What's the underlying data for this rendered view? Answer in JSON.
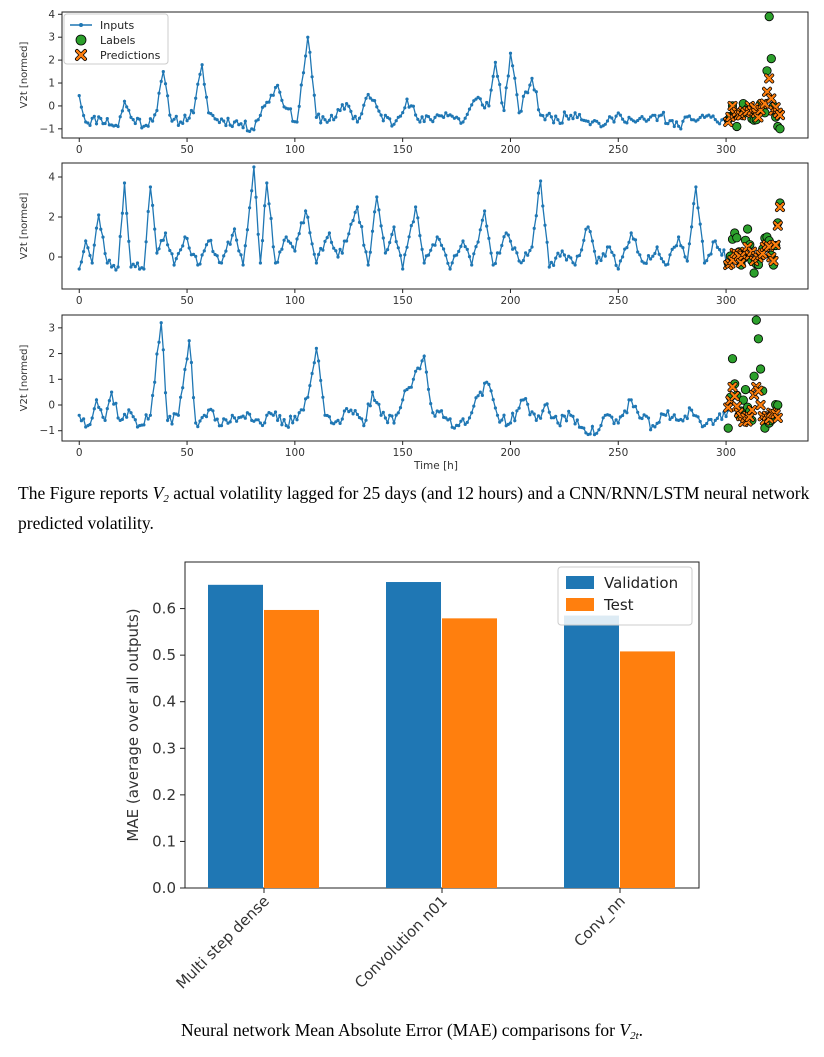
{
  "chart_data": [
    {
      "type": "line",
      "title": "",
      "xlabel": "Time [h]",
      "ylabel": "V2t [normed]",
      "xlim": [
        -8,
        338
      ],
      "x_ticks": [
        0,
        50,
        100,
        150,
        200,
        250,
        300
      ],
      "legend": {
        "placement": "top-left",
        "entries": [
          "Inputs",
          "Labels",
          "Predictions"
        ]
      },
      "panels": [
        {
          "ylabel": "V2t [normed]",
          "ylim": [
            -1.4,
            4.1
          ],
          "y_ticks": [
            -1,
            0,
            1,
            2,
            3,
            4
          ],
          "inputs_knots": [
            [
              0,
              0.45
            ],
            [
              3,
              -0.7
            ],
            [
              10,
              -0.55
            ],
            [
              18,
              -0.9
            ],
            [
              21,
              0.2
            ],
            [
              24,
              -0.5
            ],
            [
              31,
              -0.85
            ],
            [
              36,
              -0.2
            ],
            [
              39,
              1.5
            ],
            [
              42,
              -0.4
            ],
            [
              47,
              -0.7
            ],
            [
              53,
              -0.3
            ],
            [
              57,
              1.8
            ],
            [
              60,
              -0.3
            ],
            [
              64,
              -0.6
            ],
            [
              72,
              -0.7
            ],
            [
              80,
              -1.0
            ],
            [
              86,
              0.0
            ],
            [
              92,
              0.9
            ],
            [
              96,
              -0.1
            ],
            [
              101,
              -0.7
            ],
            [
              106,
              3.0
            ],
            [
              110,
              -0.5
            ],
            [
              118,
              -0.6
            ],
            [
              124,
              0.1
            ],
            [
              129,
              -0.7
            ],
            [
              134,
              0.5
            ],
            [
              140,
              -0.4
            ],
            [
              146,
              -0.8
            ],
            [
              152,
              0.3
            ],
            [
              158,
              -0.7
            ],
            [
              165,
              -0.5
            ],
            [
              170,
              -0.3
            ],
            [
              178,
              -0.7
            ],
            [
              184,
              0.3
            ],
            [
              190,
              0.0
            ],
            [
              193,
              1.9
            ],
            [
              197,
              -0.2
            ],
            [
              200,
              2.3
            ],
            [
              204,
              -0.3
            ],
            [
              210,
              1.2
            ],
            [
              214,
              -0.4
            ],
            [
              222,
              -0.6
            ],
            [
              230,
              -0.3
            ],
            [
              238,
              -0.7
            ],
            [
              244,
              -0.8
            ],
            [
              251,
              -0.4
            ],
            [
              258,
              -0.7
            ],
            [
              264,
              -0.6
            ],
            [
              270,
              -0.4
            ],
            [
              276,
              -0.9
            ],
            [
              284,
              -0.6
            ],
            [
              292,
              -0.4
            ],
            [
              296,
              -0.7
            ],
            [
              301,
              -0.6
            ]
          ],
          "label_knots": [
            [
              301,
              -0.6
            ],
            [
              303,
              0.0
            ],
            [
              305,
              -0.9
            ],
            [
              308,
              0.1
            ],
            [
              311,
              -0.3
            ],
            [
              314,
              -0.6
            ],
            [
              316,
              0.1
            ],
            [
              318,
              -0.3
            ],
            [
              320,
              3.9
            ],
            [
              322,
              0.0
            ],
            [
              325,
              -1.0
            ]
          ],
          "prediction_knots": [
            [
              301,
              -0.7
            ],
            [
              303,
              0.0
            ],
            [
              306,
              -0.4
            ],
            [
              309,
              -0.3
            ],
            [
              312,
              -0.2
            ],
            [
              315,
              -0.5
            ],
            [
              318,
              0.1
            ],
            [
              320,
              1.2
            ],
            [
              322,
              -0.2
            ],
            [
              325,
              -0.4
            ]
          ],
          "seed": 11
        },
        {
          "ylabel": "V2t [normed]",
          "ylim": [
            -1.6,
            4.7
          ],
          "y_ticks": [
            0,
            2,
            4
          ],
          "inputs_knots": [
            [
              0,
              -0.6
            ],
            [
              3,
              0.8
            ],
            [
              6,
              -0.3
            ],
            [
              9,
              2.1
            ],
            [
              13,
              -0.3
            ],
            [
              18,
              -0.5
            ],
            [
              21,
              3.7
            ],
            [
              24,
              -0.5
            ],
            [
              27,
              -0.3
            ],
            [
              30,
              -0.6
            ],
            [
              33,
              3.5
            ],
            [
              36,
              0.2
            ],
            [
              40,
              1.2
            ],
            [
              44,
              -0.4
            ],
            [
              49,
              1.0
            ],
            [
              55,
              -0.4
            ],
            [
              60,
              0.8
            ],
            [
              66,
              -0.3
            ],
            [
              72,
              1.4
            ],
            [
              76,
              -0.4
            ],
            [
              81,
              4.5
            ],
            [
              84,
              -0.3
            ],
            [
              87,
              3.7
            ],
            [
              91,
              -0.3
            ],
            [
              96,
              1.0
            ],
            [
              100,
              0.3
            ],
            [
              105,
              2.3
            ],
            [
              110,
              -0.3
            ],
            [
              116,
              1.2
            ],
            [
              120,
              0.0
            ],
            [
              124,
              0.8
            ],
            [
              129,
              2.5
            ],
            [
              134,
              -0.4
            ],
            [
              138,
              3.0
            ],
            [
              142,
              0.2
            ],
            [
              146,
              1.5
            ],
            [
              150,
              -0.6
            ],
            [
              156,
              2.5
            ],
            [
              160,
              -0.3
            ],
            [
              166,
              1.0
            ],
            [
              172,
              -0.6
            ],
            [
              178,
              0.8
            ],
            [
              182,
              -0.4
            ],
            [
              188,
              2.3
            ],
            [
              192,
              -0.4
            ],
            [
              198,
              1.2
            ],
            [
              204,
              -0.2
            ],
            [
              210,
              0.5
            ],
            [
              214,
              3.8
            ],
            [
              218,
              -0.5
            ],
            [
              224,
              0.3
            ],
            [
              230,
              -0.4
            ],
            [
              236,
              1.5
            ],
            [
              240,
              -0.3
            ],
            [
              246,
              0.5
            ],
            [
              250,
              -0.6
            ],
            [
              256,
              1.2
            ],
            [
              262,
              -0.3
            ],
            [
              268,
              0.5
            ],
            [
              272,
              -0.4
            ],
            [
              278,
              1.0
            ],
            [
              282,
              -0.2
            ],
            [
              286,
              3.5
            ],
            [
              290,
              -0.3
            ],
            [
              295,
              0.8
            ],
            [
              301,
              -0.2
            ]
          ],
          "label_knots": [
            [
              301,
              -0.3
            ],
            [
              304,
              1.2
            ],
            [
              307,
              -0.4
            ],
            [
              310,
              1.4
            ],
            [
              313,
              -0.8
            ],
            [
              316,
              0.1
            ],
            [
              319,
              1.0
            ],
            [
              322,
              -0.4
            ],
            [
              325,
              2.7
            ]
          ],
          "prediction_knots": [
            [
              301,
              -0.4
            ],
            [
              304,
              0.2
            ],
            [
              307,
              -0.3
            ],
            [
              310,
              0.5
            ],
            [
              313,
              -0.2
            ],
            [
              316,
              0.1
            ],
            [
              319,
              0.6
            ],
            [
              322,
              -0.2
            ],
            [
              325,
              2.5
            ]
          ],
          "seed": 23
        },
        {
          "ylabel": "V2t [normed]",
          "ylim": [
            -1.4,
            3.5
          ],
          "y_ticks": [
            -1,
            0,
            1,
            2,
            3
          ],
          "inputs_knots": [
            [
              0,
              -0.4
            ],
            [
              4,
              -0.8
            ],
            [
              8,
              0.2
            ],
            [
              12,
              -0.6
            ],
            [
              15,
              0.5
            ],
            [
              19,
              -0.6
            ],
            [
              24,
              -0.3
            ],
            [
              28,
              -0.8
            ],
            [
              33,
              -0.4
            ],
            [
              38,
              3.2
            ],
            [
              41,
              -0.6
            ],
            [
              46,
              -0.4
            ],
            [
              51,
              2.5
            ],
            [
              54,
              -0.7
            ],
            [
              60,
              -0.2
            ],
            [
              66,
              -0.8
            ],
            [
              72,
              -0.5
            ],
            [
              78,
              -0.3
            ],
            [
              84,
              -0.7
            ],
            [
              90,
              -0.4
            ],
            [
              96,
              -0.8
            ],
            [
              102,
              -0.3
            ],
            [
              106,
              0.3
            ],
            [
              110,
              2.2
            ],
            [
              114,
              -0.4
            ],
            [
              120,
              -0.6
            ],
            [
              126,
              -0.2
            ],
            [
              132,
              -0.8
            ],
            [
              136,
              0.5
            ],
            [
              140,
              -0.4
            ],
            [
              146,
              -0.7
            ],
            [
              150,
              0.2
            ],
            [
              155,
              1.0
            ],
            [
              160,
              1.9
            ],
            [
              164,
              -0.3
            ],
            [
              170,
              -0.5
            ],
            [
              176,
              -0.8
            ],
            [
              182,
              -0.3
            ],
            [
              186,
              0.5
            ],
            [
              190,
              0.8
            ],
            [
              194,
              -0.4
            ],
            [
              200,
              -0.7
            ],
            [
              206,
              0.2
            ],
            [
              212,
              -0.6
            ],
            [
              216,
              0.0
            ],
            [
              222,
              -0.7
            ],
            [
              228,
              -0.4
            ],
            [
              234,
              -0.9
            ],
            [
              240,
              -1.1
            ],
            [
              244,
              -0.4
            ],
            [
              250,
              -0.7
            ],
            [
              256,
              0.2
            ],
            [
              260,
              -0.5
            ],
            [
              266,
              -0.8
            ],
            [
              272,
              -0.4
            ],
            [
              278,
              -0.6
            ],
            [
              284,
              -0.2
            ],
            [
              290,
              -0.8
            ],
            [
              295,
              -0.6
            ],
            [
              301,
              -0.2
            ]
          ],
          "label_knots": [
            [
              301,
              -0.9
            ],
            [
              303,
              1.8
            ],
            [
              306,
              -0.4
            ],
            [
              309,
              0.6
            ],
            [
              312,
              -0.6
            ],
            [
              314,
              3.3
            ],
            [
              316,
              1.4
            ],
            [
              318,
              -0.9
            ],
            [
              321,
              -0.6
            ],
            [
              324,
              0.0
            ]
          ],
          "prediction_knots": [
            [
              301,
              -0.1
            ],
            [
              303,
              0.7
            ],
            [
              306,
              -0.3
            ],
            [
              309,
              -0.5
            ],
            [
              312,
              -0.2
            ],
            [
              314,
              0.7
            ],
            [
              316,
              0.0
            ],
            [
              318,
              -0.6
            ],
            [
              321,
              -0.3
            ],
            [
              324,
              -0.5
            ]
          ],
          "seed": 37
        }
      ]
    },
    {
      "type": "bar",
      "title": "",
      "xlabel": "",
      "ylabel": "MAE (average over all outputs)",
      "ylim": [
        0,
        0.7
      ],
      "y_ticks": [
        "0.0",
        "0.1",
        "0.2",
        "0.3",
        "0.4",
        "0.5",
        "0.6"
      ],
      "categories": [
        "Multi step dense",
        "Convolution n01",
        "Conv_nn"
      ],
      "series": [
        {
          "name": "Validation",
          "color": "#1f77b4",
          "values": [
            0.651,
            0.657,
            0.585
          ]
        },
        {
          "name": "Test",
          "color": "#ff7f0e",
          "values": [
            0.597,
            0.579,
            0.508
          ]
        }
      ],
      "legend": {
        "placement": "top-right"
      }
    }
  ],
  "captions": {
    "fig1_part1": "The Figure reports ",
    "fig1_var": "V",
    "fig1_sub": "2",
    "fig1_part2": " actual volatility lagged for 25 days (and 12 hours) and a CNN/RNN/LSTM neural network predicted volatility.",
    "fig2_part1": "Neural network Mean Absolute Error (MAE) comparisons for ",
    "fig2_var": "V",
    "fig2_sub": "2t",
    "fig2_part2": "."
  }
}
